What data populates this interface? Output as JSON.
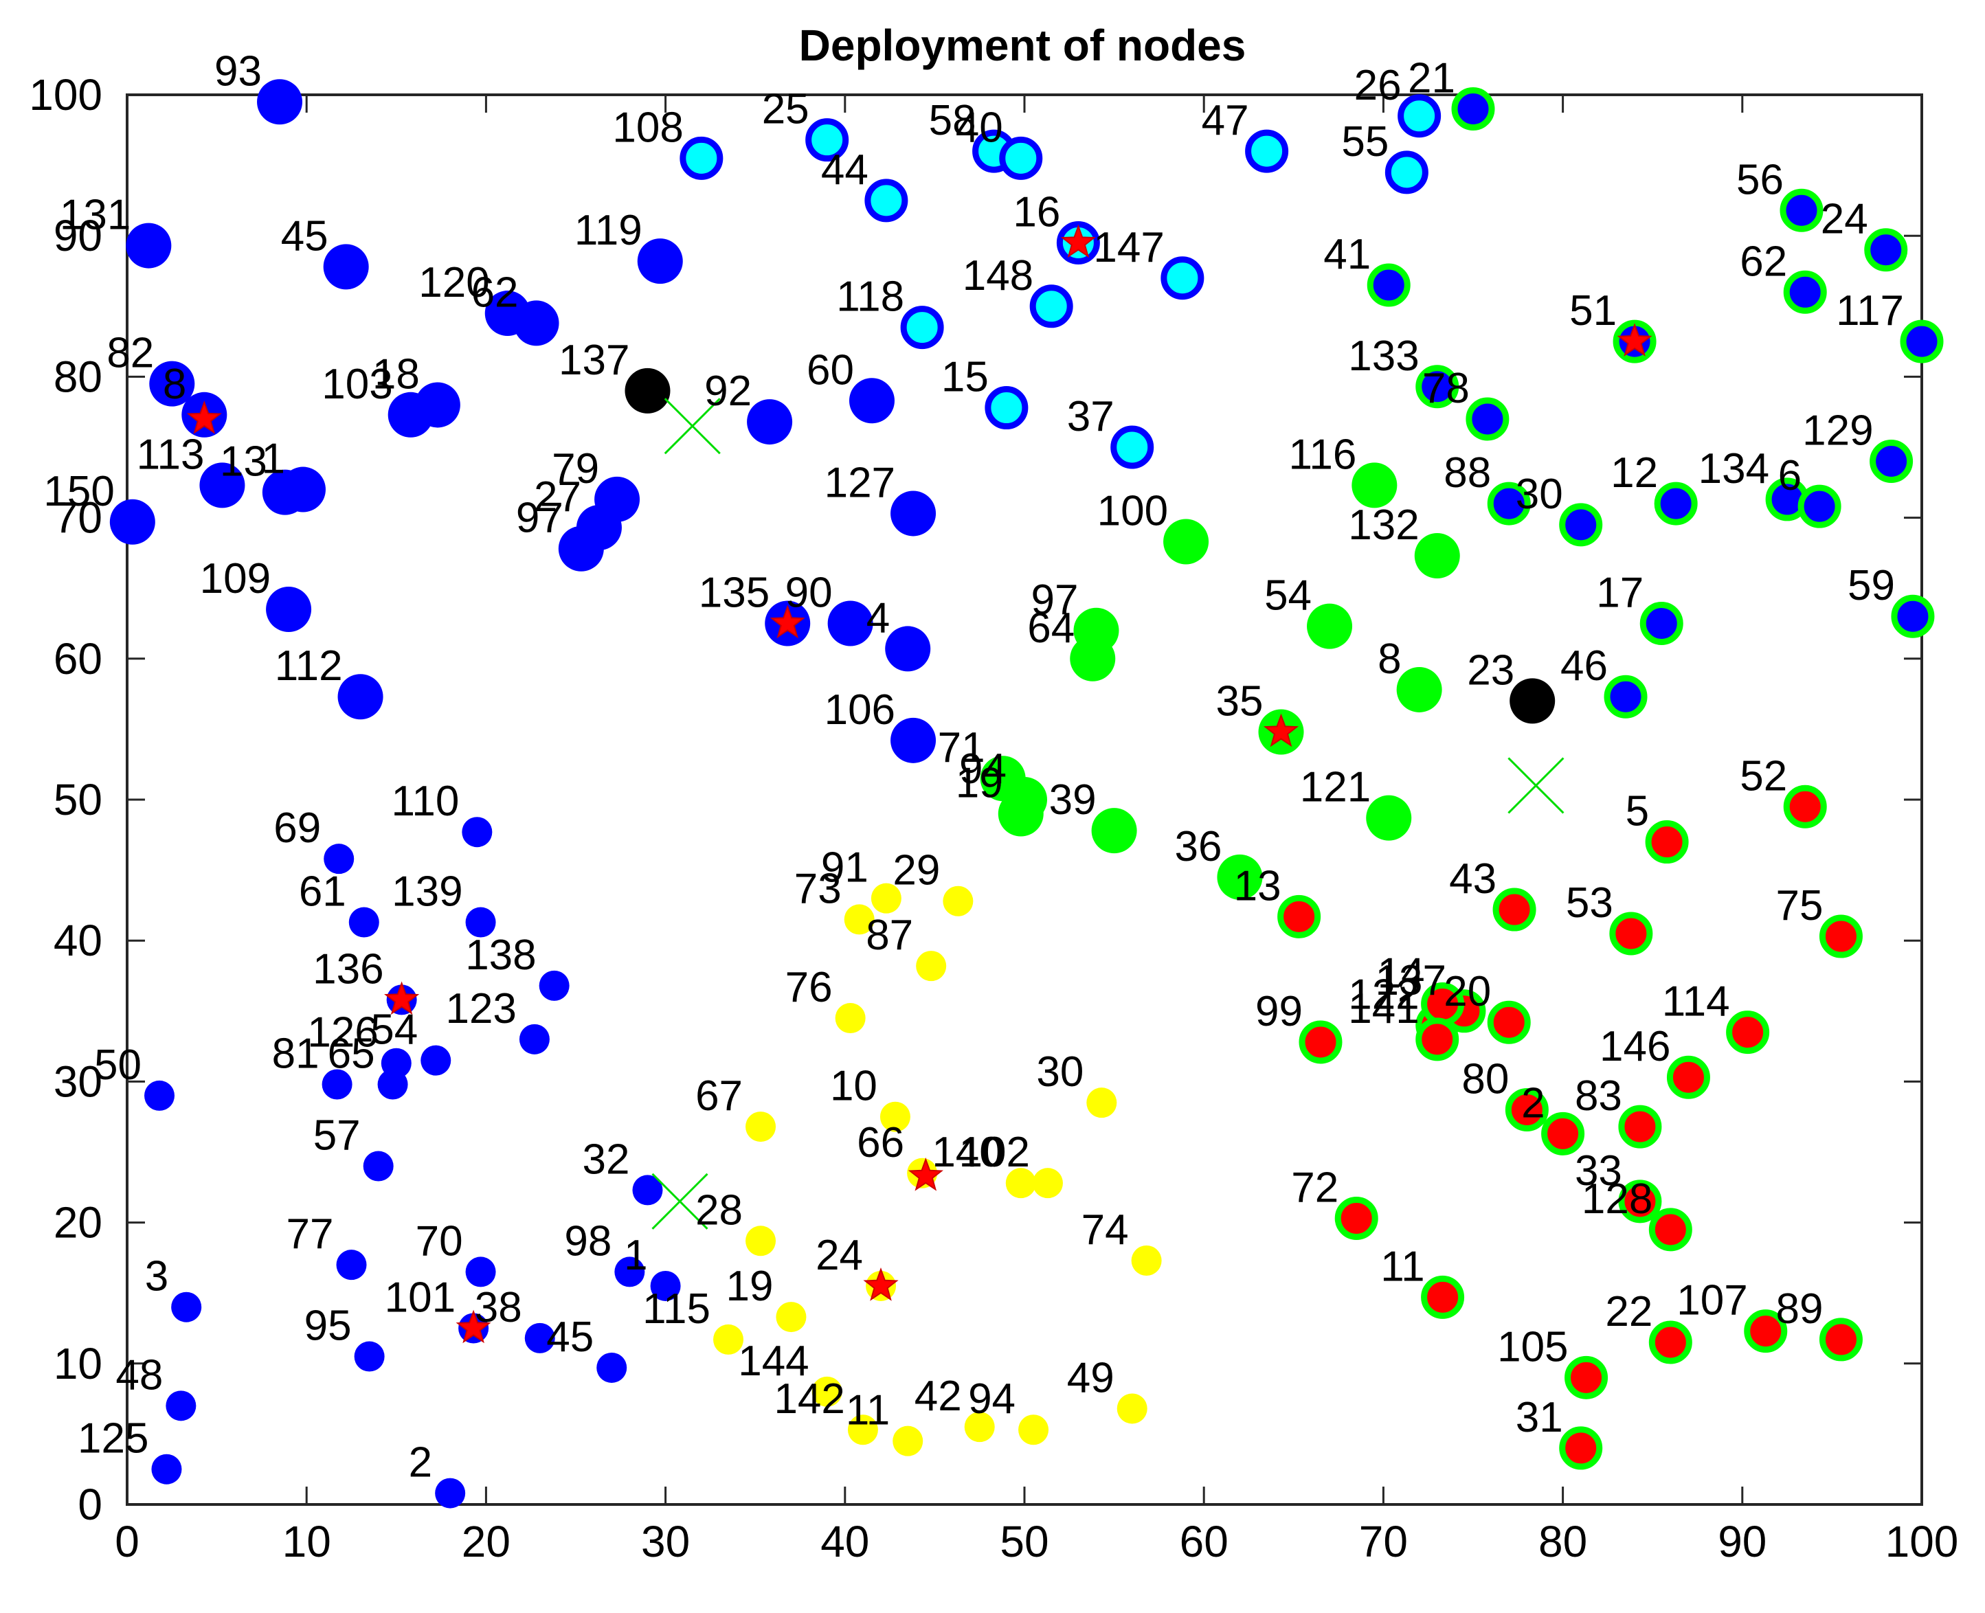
{
  "chart_data": {
    "type": "scatter",
    "title": "Deployment of nodes",
    "xlabel": "",
    "ylabel": "",
    "xlim": [
      0,
      100
    ],
    "ylim": [
      0,
      100
    ],
    "xticks": [
      "0",
      "10",
      "20",
      "30",
      "40",
      "50",
      "60",
      "70",
      "80",
      "90",
      "100"
    ],
    "yticks": [
      "0",
      "10",
      "20",
      "30",
      "40",
      "50",
      "60",
      "70",
      "80",
      "90",
      "100"
    ],
    "colors": {
      "blue": "#0000ff",
      "cyan": "#00ffff",
      "green": "#00ff00",
      "yellow": "#ffff00",
      "red": "#ff0000",
      "black": "#000000",
      "star": "#ff0000",
      "base_station_cross": "#00dd00"
    },
    "series": [
      {
        "name": "cluster-blue-large",
        "marker": "filled-circle",
        "fill": "blue",
        "points": [
          {
            "label": "93",
            "x": 8.5,
            "y": 99.5
          },
          {
            "label": "131",
            "x": 1.2,
            "y": 89.3
          },
          {
            "label": "45",
            "x": 12.2,
            "y": 87.8
          },
          {
            "label": "119",
            "x": 29.7,
            "y": 88.2
          },
          {
            "label": "120",
            "x": 21.2,
            "y": 84.5
          },
          {
            "label": "62",
            "x": 22.8,
            "y": 83.8
          },
          {
            "label": "82",
            "x": 2.5,
            "y": 79.5
          },
          {
            "label": "8",
            "x": 4.3,
            "y": 77.3
          },
          {
            "label": "103",
            "x": 15.8,
            "y": 77.3
          },
          {
            "label": "18",
            "x": 17.3,
            "y": 78.0
          },
          {
            "label": "92",
            "x": 35.8,
            "y": 76.8
          },
          {
            "label": "60",
            "x": 41.5,
            "y": 78.3
          },
          {
            "label": "113",
            "x": 5.3,
            "y": 72.3
          },
          {
            "label": "13",
            "x": 8.8,
            "y": 71.8
          },
          {
            "label": "1",
            "x": 9.8,
            "y": 72.0
          },
          {
            "label": "150",
            "x": 0.3,
            "y": 69.7
          },
          {
            "label": "79",
            "x": 27.3,
            "y": 71.3
          },
          {
            "label": "27",
            "x": 26.3,
            "y": 69.3
          },
          {
            "label": "97",
            "x": 25.3,
            "y": 67.8
          },
          {
            "label": "127",
            "x": 43.8,
            "y": 70.3
          },
          {
            "label": "109",
            "x": 9.0,
            "y": 63.5
          },
          {
            "label": "112",
            "x": 13.0,
            "y": 57.3
          },
          {
            "label": "135",
            "x": 36.8,
            "y": 62.5
          },
          {
            "label": "90",
            "x": 40.3,
            "y": 62.5
          },
          {
            "label": "4",
            "x": 43.5,
            "y": 60.7
          },
          {
            "label": "106",
            "x": 43.8,
            "y": 54.2
          }
        ]
      },
      {
        "name": "cluster-cyan",
        "marker": "ringed-circle",
        "fill": "cyan",
        "ring": "blue",
        "points": [
          {
            "label": "108",
            "x": 32.0,
            "y": 95.5
          },
          {
            "label": "25",
            "x": 39.0,
            "y": 96.8
          },
          {
            "label": "44",
            "x": 42.3,
            "y": 92.5
          },
          {
            "label": "58",
            "x": 48.3,
            "y": 96.0
          },
          {
            "label": "40",
            "x": 49.8,
            "y": 95.5
          },
          {
            "label": "26",
            "x": 72.0,
            "y": 98.5
          },
          {
            "label": "47",
            "x": 63.5,
            "y": 96.0
          },
          {
            "label": "55",
            "x": 71.3,
            "y": 94.5
          },
          {
            "label": "16",
            "x": 53.0,
            "y": 89.5
          },
          {
            "label": "147",
            "x": 58.8,
            "y": 87.0
          },
          {
            "label": "148",
            "x": 51.5,
            "y": 85.0
          },
          {
            "label": "118",
            "x": 44.3,
            "y": 83.5
          },
          {
            "label": "15",
            "x": 49.0,
            "y": 77.8
          },
          {
            "label": "37",
            "x": 56.0,
            "y": 75.0
          }
        ]
      },
      {
        "name": "cluster-blue-small",
        "marker": "filled-circle-small",
        "fill": "blue",
        "points": [
          {
            "label": "110",
            "x": 19.5,
            "y": 47.7
          },
          {
            "label": "69",
            "x": 11.8,
            "y": 45.8
          },
          {
            "label": "61",
            "x": 13.2,
            "y": 41.3
          },
          {
            "label": "139",
            "x": 19.7,
            "y": 41.3
          },
          {
            "label": "138",
            "x": 23.8,
            "y": 36.8
          },
          {
            "label": "136",
            "x": 15.3,
            "y": 35.8
          },
          {
            "label": "123",
            "x": 22.7,
            "y": 33.0
          },
          {
            "label": "126",
            "x": 15.0,
            "y": 31.3
          },
          {
            "label": "54",
            "x": 17.2,
            "y": 31.5
          },
          {
            "label": "81",
            "x": 11.7,
            "y": 29.8
          },
          {
            "label": "65",
            "x": 14.8,
            "y": 29.8
          },
          {
            "label": "50",
            "x": 1.8,
            "y": 29.0
          },
          {
            "label": "57",
            "x": 14.0,
            "y": 24.0
          },
          {
            "label": "32",
            "x": 29.0,
            "y": 22.3
          },
          {
            "label": "77",
            "x": 12.5,
            "y": 17.0
          },
          {
            "label": "70",
            "x": 19.7,
            "y": 16.5
          },
          {
            "label": "98",
            "x": 28.0,
            "y": 16.5
          },
          {
            "label": "1",
            "x": 30.0,
            "y": 15.5
          },
          {
            "label": "101",
            "x": 19.3,
            "y": 12.5
          },
          {
            "label": "38",
            "x": 23.0,
            "y": 11.8
          },
          {
            "label": "45",
            "x": 27.0,
            "y": 9.7
          },
          {
            "label": "3",
            "x": 3.3,
            "y": 14.0
          },
          {
            "label": "95",
            "x": 13.5,
            "y": 10.5
          },
          {
            "label": "48",
            "x": 3.0,
            "y": 7.0
          },
          {
            "label": "125",
            "x": 2.2,
            "y": 2.5
          },
          {
            "label": "2",
            "x": 18.0,
            "y": 0.8
          }
        ]
      },
      {
        "name": "cluster-green",
        "marker": "filled-circle",
        "fill": "green",
        "points": [
          {
            "label": "116",
            "x": 69.5,
            "y": 72.3
          },
          {
            "label": "100",
            "x": 59.0,
            "y": 68.3
          },
          {
            "label": "132",
            "x": 73.0,
            "y": 67.3
          },
          {
            "label": "97",
            "x": 54.0,
            "y": 62.0
          },
          {
            "label": "64",
            "x": 53.8,
            "y": 60.0
          },
          {
            "label": "54",
            "x": 67.0,
            "y": 62.3
          },
          {
            "label": "8",
            "x": 72.0,
            "y": 57.8
          },
          {
            "label": "35",
            "x": 64.3,
            "y": 54.8
          },
          {
            "label": "71",
            "x": 48.8,
            "y": 51.5
          },
          {
            "label": "19",
            "x": 49.8,
            "y": 49.0
          },
          {
            "label": "94",
            "x": 50.0,
            "y": 50.0
          },
          {
            "label": "39",
            "x": 55.0,
            "y": 47.8
          },
          {
            "label": "121",
            "x": 70.3,
            "y": 48.7
          },
          {
            "label": "36",
            "x": 62.0,
            "y": 44.5
          }
        ]
      },
      {
        "name": "cluster-blue-green-ring",
        "marker": "ringed-circle",
        "fill": "blue",
        "ring": "green",
        "points": [
          {
            "label": "21",
            "x": 75.0,
            "y": 99.0
          },
          {
            "label": "56",
            "x": 93.3,
            "y": 91.8
          },
          {
            "label": "24",
            "x": 98.0,
            "y": 89.0
          },
          {
            "label": "62",
            "x": 93.5,
            "y": 86.0
          },
          {
            "label": "41",
            "x": 70.3,
            "y": 86.5
          },
          {
            "label": "51",
            "x": 84.0,
            "y": 82.5
          },
          {
            "label": "117",
            "x": 100.0,
            "y": 82.5
          },
          {
            "label": "133",
            "x": 73.0,
            "y": 79.3
          },
          {
            "label": "78",
            "x": 75.8,
            "y": 77.0
          },
          {
            "label": "129",
            "x": 98.3,
            "y": 74.0
          },
          {
            "label": "88",
            "x": 77.0,
            "y": 71.0
          },
          {
            "label": "30",
            "x": 81.0,
            "y": 69.5
          },
          {
            "label": "12",
            "x": 86.3,
            "y": 71.0
          },
          {
            "label": "134",
            "x": 92.5,
            "y": 71.3
          },
          {
            "label": "6",
            "x": 94.3,
            "y": 70.8
          },
          {
            "label": "17",
            "x": 85.5,
            "y": 62.5
          },
          {
            "label": "59",
            "x": 99.5,
            "y": 63.0
          },
          {
            "label": "46",
            "x": 83.5,
            "y": 57.3
          }
        ]
      },
      {
        "name": "cluster-red",
        "marker": "ringed-circle",
        "fill": "red",
        "ring": "green",
        "points": [
          {
            "label": "52",
            "x": 93.5,
            "y": 49.5
          },
          {
            "label": "5",
            "x": 85.8,
            "y": 47.0
          },
          {
            "label": "53",
            "x": 83.8,
            "y": 40.5
          },
          {
            "label": "75",
            "x": 95.5,
            "y": 40.3
          },
          {
            "label": "43",
            "x": 77.3,
            "y": 42.2
          },
          {
            "label": "13",
            "x": 65.3,
            "y": 41.7
          },
          {
            "label": "99",
            "x": 66.5,
            "y": 32.8
          },
          {
            "label": "122",
            "x": 73.0,
            "y": 34.0
          },
          {
            "label": "137",
            "x": 74.5,
            "y": 35.0
          },
          {
            "label": "14",
            "x": 73.3,
            "y": 35.5
          },
          {
            "label": "20",
            "x": 77.0,
            "y": 34.2
          },
          {
            "label": "141",
            "x": 73.0,
            "y": 33.0
          },
          {
            "label": "114",
            "x": 90.3,
            "y": 33.5
          },
          {
            "label": "146",
            "x": 87.0,
            "y": 30.3
          },
          {
            "label": "80",
            "x": 78.0,
            "y": 28.0
          },
          {
            "label": "2",
            "x": 80.0,
            "y": 26.3
          },
          {
            "label": "83",
            "x": 84.3,
            "y": 26.8
          },
          {
            "label": "33",
            "x": 84.3,
            "y": 21.5
          },
          {
            "label": "128",
            "x": 86.0,
            "y": 19.5
          },
          {
            "label": "72",
            "x": 68.5,
            "y": 20.3
          },
          {
            "label": "11",
            "x": 73.3,
            "y": 14.7
          },
          {
            "label": "22",
            "x": 86.0,
            "y": 11.5
          },
          {
            "label": "107",
            "x": 91.3,
            "y": 12.3
          },
          {
            "label": "89",
            "x": 95.5,
            "y": 11.7
          },
          {
            "label": "105",
            "x": 81.3,
            "y": 9.0
          },
          {
            "label": "31",
            "x": 81.0,
            "y": 4.0
          }
        ]
      },
      {
        "name": "cluster-yellow",
        "marker": "filled-circle-small",
        "fill": "yellow",
        "points": [
          {
            "label": "73",
            "x": 40.8,
            "y": 41.5
          },
          {
            "label": "91",
            "x": 42.3,
            "y": 43.0
          },
          {
            "label": "29",
            "x": 46.3,
            "y": 42.8
          },
          {
            "label": "87",
            "x": 44.8,
            "y": 38.2
          },
          {
            "label": "76",
            "x": 40.3,
            "y": 34.5
          },
          {
            "label": "10",
            "x": 42.8,
            "y": 27.5
          },
          {
            "label": "67",
            "x": 35.3,
            "y": 26.8
          },
          {
            "label": "30",
            "x": 54.3,
            "y": 28.5
          },
          {
            "label": "66",
            "x": 44.3,
            "y": 23.5
          },
          {
            "label": "140",
            "x": 49.8,
            "y": 22.8
          },
          {
            "label": "102",
            "x": 51.3,
            "y": 22.8
          },
          {
            "label": "28",
            "x": 35.3,
            "y": 18.7
          },
          {
            "label": "74",
            "x": 56.8,
            "y": 17.3
          },
          {
            "label": "24",
            "x": 42.0,
            "y": 15.5
          },
          {
            "label": "19",
            "x": 37.0,
            "y": 13.3
          },
          {
            "label": "115",
            "x": 33.5,
            "y": 11.7
          },
          {
            "label": "144",
            "x": 39.0,
            "y": 8.0
          },
          {
            "label": "142",
            "x": 41.0,
            "y": 5.3
          },
          {
            "label": "11",
            "x": 43.5,
            "y": 4.5
          },
          {
            "label": "42",
            "x": 47.5,
            "y": 5.5
          },
          {
            "label": "94",
            "x": 50.5,
            "y": 5.3
          },
          {
            "label": "49",
            "x": 56.0,
            "y": 6.8
          }
        ]
      },
      {
        "name": "black-nodes",
        "marker": "filled-circle",
        "fill": "black",
        "points": [
          {
            "label": "137",
            "x": 29.0,
            "y": 79.0
          },
          {
            "label": "23",
            "x": 78.3,
            "y": 57.0
          }
        ]
      },
      {
        "name": "cluster-heads",
        "marker": "star",
        "fill": "star",
        "points": [
          {
            "x": 4.3,
            "y": 77.0
          },
          {
            "x": 53.0,
            "y": 89.5
          },
          {
            "x": 84.0,
            "y": 82.5
          },
          {
            "x": 36.8,
            "y": 62.5
          },
          {
            "x": 64.3,
            "y": 54.8
          },
          {
            "x": 15.3,
            "y": 35.8
          },
          {
            "x": 44.5,
            "y": 23.3
          },
          {
            "x": 42.0,
            "y": 15.5
          },
          {
            "x": 19.3,
            "y": 12.5
          }
        ]
      },
      {
        "name": "centroids",
        "marker": "cross",
        "fill": "base_station_cross",
        "points": [
          {
            "x": 31.5,
            "y": 76.5
          },
          {
            "x": 78.5,
            "y": 51.0
          },
          {
            "x": 30.8,
            "y": 21.5
          }
        ]
      }
    ]
  }
}
